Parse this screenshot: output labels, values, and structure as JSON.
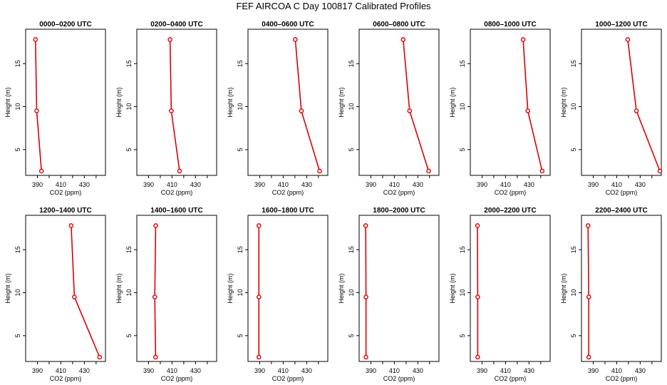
{
  "title": "FEF AIRCOA C  Day 100817  Calibrated Profiles",
  "colors": {
    "series": "#dd0000",
    "frame": "#000000"
  },
  "chart_data": [
    {
      "type": "line",
      "title": "0000–0200 UTC",
      "xlabel": "CO2 (ppm)",
      "ylabel": "Height (m)",
      "xlim": [
        380,
        448
      ],
      "ylim": [
        2,
        19
      ],
      "xticks": [
        390,
        410,
        430
      ],
      "yticks": [
        5,
        10,
        15
      ],
      "grid": false,
      "x": [
        388.4,
        389.4,
        393.5
      ],
      "y": [
        17.8,
        9.5,
        2.5
      ]
    },
    {
      "type": "line",
      "title": "0200–0400 UTC",
      "xlabel": "CO2 (ppm)",
      "ylabel": "Height (m)",
      "xlim": [
        380,
        448
      ],
      "ylim": [
        2,
        19
      ],
      "xticks": [
        390,
        410,
        430
      ],
      "yticks": [
        5,
        10,
        15
      ],
      "grid": false,
      "x": [
        408.3,
        409.4,
        416.4
      ],
      "y": [
        17.8,
        9.5,
        2.5
      ]
    },
    {
      "type": "line",
      "title": "0400–0600 UTC",
      "xlabel": "CO2 (ppm)",
      "ylabel": "Height (m)",
      "xlim": [
        380,
        448
      ],
      "ylim": [
        2,
        19
      ],
      "xticks": [
        390,
        410,
        430
      ],
      "yticks": [
        5,
        10,
        15
      ],
      "grid": false,
      "x": [
        420.3,
        425.5,
        441.0
      ],
      "y": [
        17.8,
        9.5,
        2.5
      ]
    },
    {
      "type": "line",
      "title": "0600–0800 UTC",
      "xlabel": "CO2 (ppm)",
      "ylabel": "Height (m)",
      "xlim": [
        380,
        448
      ],
      "ylim": [
        2,
        19
      ],
      "xticks": [
        390,
        410,
        430
      ],
      "yticks": [
        5,
        10,
        15
      ],
      "grid": false,
      "x": [
        417.5,
        423.0,
        439.2
      ],
      "y": [
        17.8,
        9.5,
        2.5
      ]
    },
    {
      "type": "line",
      "title": "0800–1000 UTC",
      "xlabel": "CO2 (ppm)",
      "ylabel": "Height (m)",
      "xlim": [
        380,
        448
      ],
      "ylim": [
        2,
        19
      ],
      "xticks": [
        390,
        410,
        430
      ],
      "yticks": [
        5,
        10,
        15
      ],
      "grid": false,
      "x": [
        425.0,
        429.0,
        441.2
      ],
      "y": [
        17.8,
        9.5,
        2.5
      ]
    },
    {
      "type": "line",
      "title": "1000–1200 UTC",
      "xlabel": "CO2 (ppm)",
      "ylabel": "Height (m)",
      "xlim": [
        380,
        448
      ],
      "ylim": [
        2,
        19
      ],
      "xticks": [
        390,
        410,
        430
      ],
      "yticks": [
        5,
        10,
        15
      ],
      "grid": false,
      "x": [
        419.4,
        426.8,
        446.8
      ],
      "y": [
        17.8,
        9.5,
        2.5
      ]
    },
    {
      "type": "line",
      "title": "1200–1400 UTC",
      "xlabel": "CO2 (ppm)",
      "ylabel": "Height (m)",
      "xlim": [
        380,
        448
      ],
      "ylim": [
        2,
        19
      ],
      "xticks": [
        390,
        410,
        430
      ],
      "yticks": [
        5,
        10,
        15
      ],
      "grid": false,
      "x": [
        418.8,
        421.5,
        443.0
      ],
      "y": [
        17.8,
        9.5,
        2.5
      ]
    },
    {
      "type": "line",
      "title": "1400–1600 UTC",
      "xlabel": "CO2 (ppm)",
      "ylabel": "Height (m)",
      "xlim": [
        380,
        448
      ],
      "ylim": [
        2,
        19
      ],
      "xticks": [
        390,
        410,
        430
      ],
      "yticks": [
        5,
        10,
        15
      ],
      "grid": false,
      "x": [
        396.1,
        395.3,
        396.0
      ],
      "y": [
        17.8,
        9.5,
        2.5
      ]
    },
    {
      "type": "line",
      "title": "1600–1800 UTC",
      "xlabel": "CO2 (ppm)",
      "ylabel": "Height (m)",
      "xlim": [
        380,
        448
      ],
      "ylim": [
        2,
        19
      ],
      "xticks": [
        390,
        410,
        430
      ],
      "yticks": [
        5,
        10,
        15
      ],
      "grid": false,
      "x": [
        389.3,
        389.3,
        389.3
      ],
      "y": [
        17.8,
        9.5,
        2.5
      ]
    },
    {
      "type": "line",
      "title": "1800–2000 UTC",
      "xlabel": "CO2 (ppm)",
      "ylabel": "Height (m)",
      "xlim": [
        380,
        448
      ],
      "ylim": [
        2,
        19
      ],
      "xticks": [
        390,
        410,
        430
      ],
      "yticks": [
        5,
        10,
        15
      ],
      "grid": false,
      "x": [
        385.6,
        385.8,
        385.8
      ],
      "y": [
        17.8,
        9.5,
        2.5
      ]
    },
    {
      "type": "line",
      "title": "2000–2200 UTC",
      "xlabel": "CO2 (ppm)",
      "ylabel": "Height (m)",
      "xlim": [
        380,
        448
      ],
      "ylim": [
        2,
        19
      ],
      "xticks": [
        390,
        410,
        430
      ],
      "yticks": [
        5,
        10,
        15
      ],
      "grid": false,
      "x": [
        386.1,
        386.3,
        386.3
      ],
      "y": [
        17.8,
        9.5,
        2.5
      ]
    },
    {
      "type": "line",
      "title": "2200–2400 UTC",
      "xlabel": "CO2 (ppm)",
      "ylabel": "Height (m)",
      "xlim": [
        380,
        448
      ],
      "ylim": [
        2,
        19
      ],
      "xticks": [
        390,
        410,
        430
      ],
      "yticks": [
        5,
        10,
        15
      ],
      "grid": false,
      "x": [
        385.6,
        386.2,
        386.2
      ],
      "y": [
        17.8,
        9.5,
        2.5
      ]
    }
  ]
}
